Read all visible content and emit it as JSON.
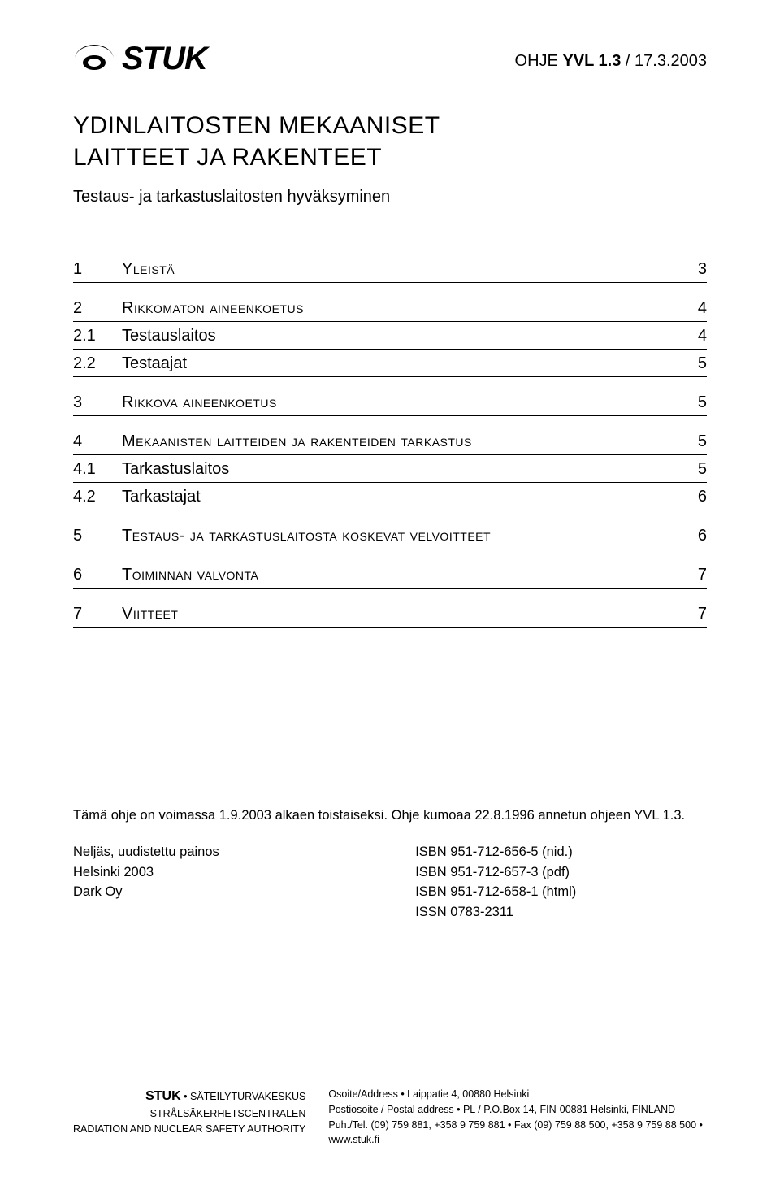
{
  "logo": {
    "text": "STUK"
  },
  "doc_ref": {
    "prefix": "OHJE ",
    "bold": "YVL 1.3",
    "suffix": " / 17.3.2003"
  },
  "title": {
    "line1": "YDINLAITOSTEN MEKAANISET",
    "line2": "LAITTEET JA RAKENTEET"
  },
  "subtitle": "Testaus- ja tarkastuslaitosten hyväksyminen",
  "toc": [
    {
      "num": "1",
      "label": "Yleistä",
      "page": "3",
      "level": 1
    },
    {
      "gap": true
    },
    {
      "num": "2",
      "label": "Rikkomaton aineenkoetus",
      "page": "4",
      "level": 1
    },
    {
      "num": "2.1",
      "label": "Testauslaitos",
      "page": "4",
      "level": 2
    },
    {
      "num": "2.2",
      "label": "Testaajat",
      "page": "5",
      "level": 2
    },
    {
      "gap": true
    },
    {
      "num": "3",
      "label": "Rikkova aineenkoetus",
      "page": "5",
      "level": 1
    },
    {
      "gap": true
    },
    {
      "num": "4",
      "label": "Mekaanisten laitteiden ja rakenteiden tarkastus",
      "page": "5",
      "level": 1
    },
    {
      "num": "4.1",
      "label": "Tarkastuslaitos",
      "page": "5",
      "level": 2
    },
    {
      "num": "4.2",
      "label": "Tarkastajat",
      "page": "6",
      "level": 2
    },
    {
      "gap": true
    },
    {
      "num": "5",
      "label": "Testaus- ja tarkastuslaitosta koskevat velvoitteet",
      "page": "6",
      "level": 1
    },
    {
      "gap": true
    },
    {
      "num": "6",
      "label": "Toiminnan valvonta",
      "page": "7",
      "level": 1
    },
    {
      "gap": true
    },
    {
      "num": "7",
      "label": "Viitteet",
      "page": "7",
      "level": 1
    }
  ],
  "validity": "Tämä ohje on voimassa 1.9.2003 alkaen toistaiseksi. Ohje kumoaa 22.8.1996 annetun ohjeen YVL 1.3.",
  "pub": {
    "left": [
      "Neljäs, uudistettu painos",
      "Helsinki 2003",
      "Dark Oy"
    ],
    "right": [
      "ISBN 951-712-656-5 (nid.)",
      "ISBN 951-712-657-3 (pdf)",
      "ISBN 951-712-658-1 (html)",
      "ISSN 0783-2311"
    ]
  },
  "footer": {
    "left": {
      "stuk": "STUK",
      "l1": " • SÄTEILYTURVAKESKUS",
      "l2": "STRÅLSÄKERHETSCENTRALEN",
      "l3": "RADIATION AND NUCLEAR SAFETY AUTHORITY"
    },
    "right": {
      "l1": "Osoite/Address • Laippatie 4, 00880 Helsinki",
      "l2": "Postiosoite / Postal address • PL / P.O.Box 14, FIN-00881 Helsinki, FINLAND",
      "l3": "Puh./Tel. (09) 759 881, +358 9 759 881 • Fax (09) 759 88 500, +358 9 759 88 500 • www.stuk.fi"
    }
  }
}
